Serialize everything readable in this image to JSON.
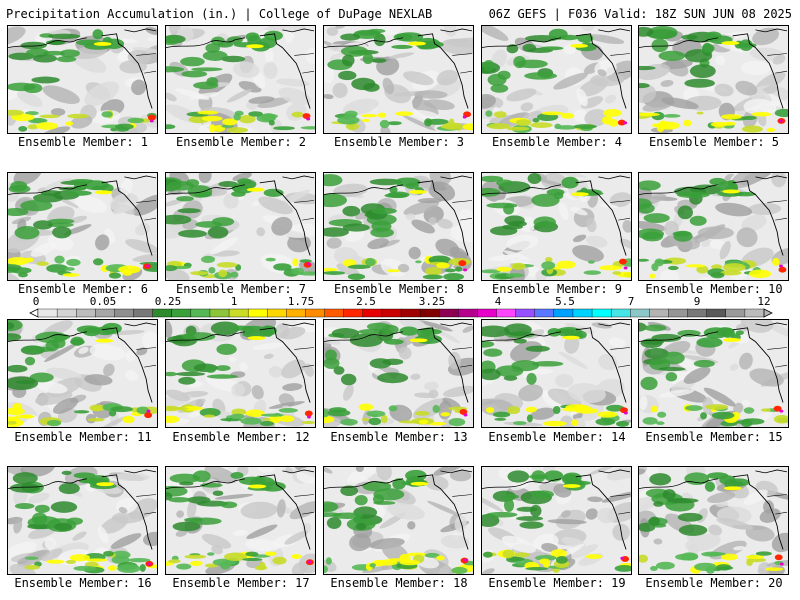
{
  "header": {
    "left_title": "Precipitation Accumulation (in.) | College of DuPage NEXLAB",
    "right_title": "06Z GEFS | F036 Valid: 18Z SUN JUN 08 2025"
  },
  "panels": [
    {
      "label": "Ensemble Member: 1"
    },
    {
      "label": "Ensemble Member: 2"
    },
    {
      "label": "Ensemble Member: 3"
    },
    {
      "label": "Ensemble Member: 4"
    },
    {
      "label": "Ensemble Member: 5"
    },
    {
      "label": "Ensemble Member: 6"
    },
    {
      "label": "Ensemble Member: 7"
    },
    {
      "label": "Ensemble Member: 8"
    },
    {
      "label": "Ensemble Member: 9"
    },
    {
      "label": "Ensemble Member: 10"
    },
    {
      "label": "Ensemble Member: 11"
    },
    {
      "label": "Ensemble Member: 12"
    },
    {
      "label": "Ensemble Member: 13"
    },
    {
      "label": "Ensemble Member: 14"
    },
    {
      "label": "Ensemble Member: 15"
    },
    {
      "label": "Ensemble Member: 16"
    },
    {
      "label": "Ensemble Member: 17"
    },
    {
      "label": "Ensemble Member: 18"
    },
    {
      "label": "Ensemble Member: 19"
    },
    {
      "label": "Ensemble Member: 20"
    }
  ],
  "colorbar": {
    "tick_labels": [
      "0",
      "0.05",
      "0.25",
      "1",
      "1.75",
      "2.5",
      "3.25",
      "4",
      "5.5",
      "7",
      "9",
      "12"
    ],
    "colors": [
      "#e8e8e8",
      "#d4d4d4",
      "#bdbdbd",
      "#a6a6a6",
      "#8f8f8f",
      "#787878",
      "#2e8b2e",
      "#3aa03a",
      "#55b855",
      "#8cc43c",
      "#c8dc28",
      "#ffff00",
      "#ffd700",
      "#ffb000",
      "#ff8c00",
      "#ff5a00",
      "#ff2800",
      "#e60000",
      "#c80000",
      "#a00000",
      "#800000",
      "#8b0050",
      "#b4008c",
      "#e600c8",
      "#ff46ff",
      "#9650ff",
      "#5a78ff",
      "#00a0ff",
      "#00d2ff",
      "#00ffff",
      "#46e6e6",
      "#8cc8c8",
      "#b4b4b4",
      "#969696",
      "#787878",
      "#5a5a5a",
      "#9a9a9a",
      "#bcbcbc"
    ]
  }
}
